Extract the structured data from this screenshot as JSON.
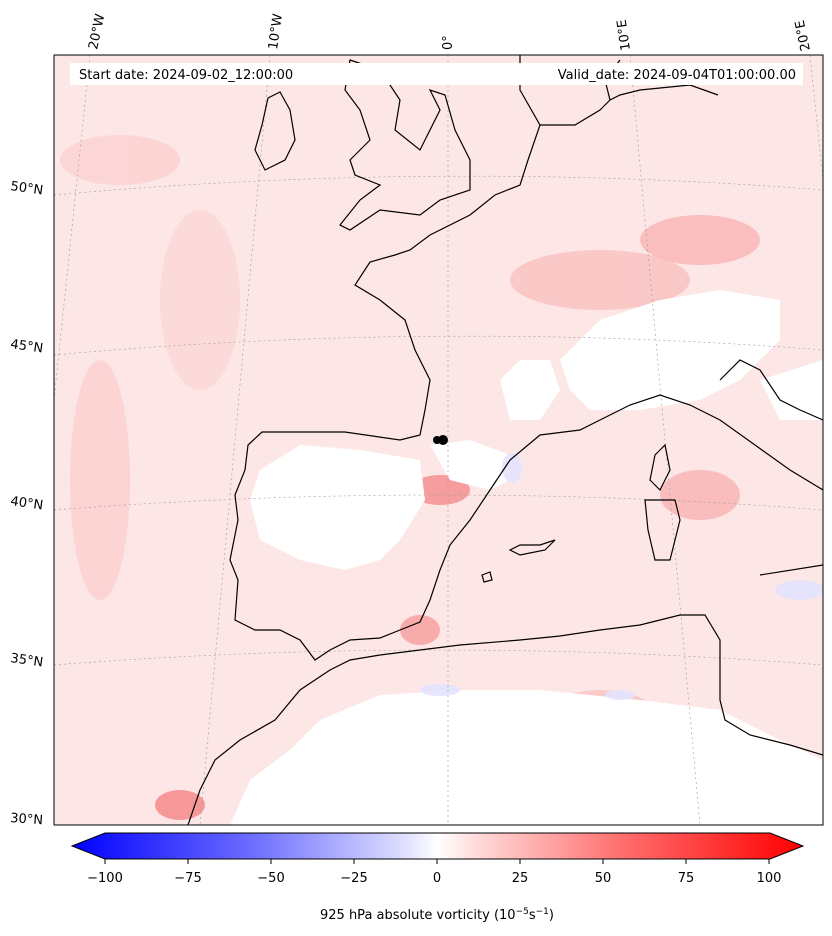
{
  "header": {
    "start_date": "Start date: 2024-09-02_12:00:00",
    "valid_date": "Valid_date: 2024-09-04T01:00:00.00"
  },
  "map": {
    "lon_labels": [
      "20°W",
      "10°W",
      "0°",
      "10°E",
      "20°E"
    ],
    "lat_labels": [
      "50°N",
      "45°N",
      "40°N",
      "35°N",
      "30°N"
    ],
    "marker": "black dot near 0° / 42°N",
    "coastline_color": "#000000"
  },
  "colorbar": {
    "ticks": [
      "−100",
      "−75",
      "−50",
      "−25",
      "0",
      "25",
      "50",
      "75",
      "100"
    ],
    "label_prefix": "925 hPa absolute vorticity (10",
    "label_exp1": "−5",
    "label_mid": "s",
    "label_exp2": "−1",
    "label_suffix": ")",
    "min_color": "#0000ff",
    "mid_color": "#ffffff",
    "max_color": "#ff0000"
  }
}
